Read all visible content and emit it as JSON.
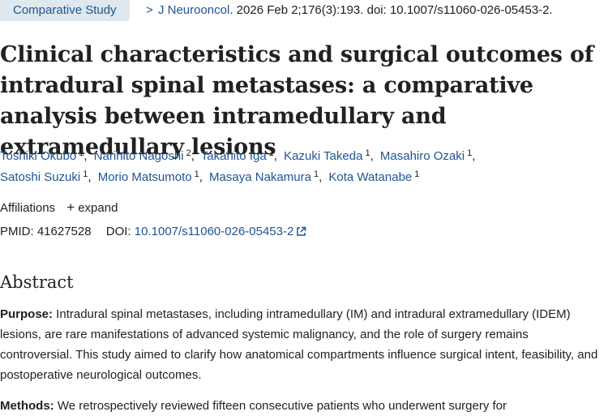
{
  "header": {
    "badge": "Comparative Study",
    "chevron": ">",
    "journal": "J Neurooncol",
    "citation_rest": ". 2026 Feb 2;176(3):193. doi: 10.1007/s11060-026-05453-2."
  },
  "title": "Clinical characteristics and surgical outcomes of intradural spinal metastases: a comparative analysis between intramedullary and extramedullary lesions",
  "authors": [
    {
      "name": "Toshiki Okubo",
      "aff": "1"
    },
    {
      "name": "Narihito Nagoshi",
      "aff": "2"
    },
    {
      "name": "Takahito Iga",
      "aff": "1"
    },
    {
      "name": "Kazuki Takeda",
      "aff": "1"
    },
    {
      "name": "Masahiro Ozaki",
      "aff": "1"
    },
    {
      "name": "Satoshi Suzuki",
      "aff": "1"
    },
    {
      "name": "Morio Matsumoto",
      "aff": "1"
    },
    {
      "name": "Masaya Nakamura",
      "aff": "1"
    },
    {
      "name": "Kota Watanabe",
      "aff": "1"
    }
  ],
  "affiliations": {
    "label": "Affiliations",
    "expand_label": "expand",
    "expand_icon": "+"
  },
  "ids": {
    "pmid_label": "PMID:",
    "pmid": "41627528",
    "doi_label": "DOI:",
    "doi": "10.1007/s11060-026-05453-2",
    "doi_icon": "external-link-icon"
  },
  "abstract": {
    "heading": "Abstract",
    "purpose_label": "Purpose:",
    "purpose_text": " Intradural spinal metastases, including intramedullary (IM) and intradural extramedullary (IDEM) lesions, are rare manifestations of advanced systemic malignancy, and the role of surgery remains controversial. This study aimed to clarify how anatomical compartments influence surgical intent, feasibility, and postoperative neurological outcomes.",
    "methods_label": "Methods:",
    "methods_text": " We retrospectively reviewed fifteen consecutive patients who underwent surgery for"
  },
  "colors": {
    "link": "#205493",
    "badge_bg": "#dfe7ef",
    "text": "#212121"
  }
}
